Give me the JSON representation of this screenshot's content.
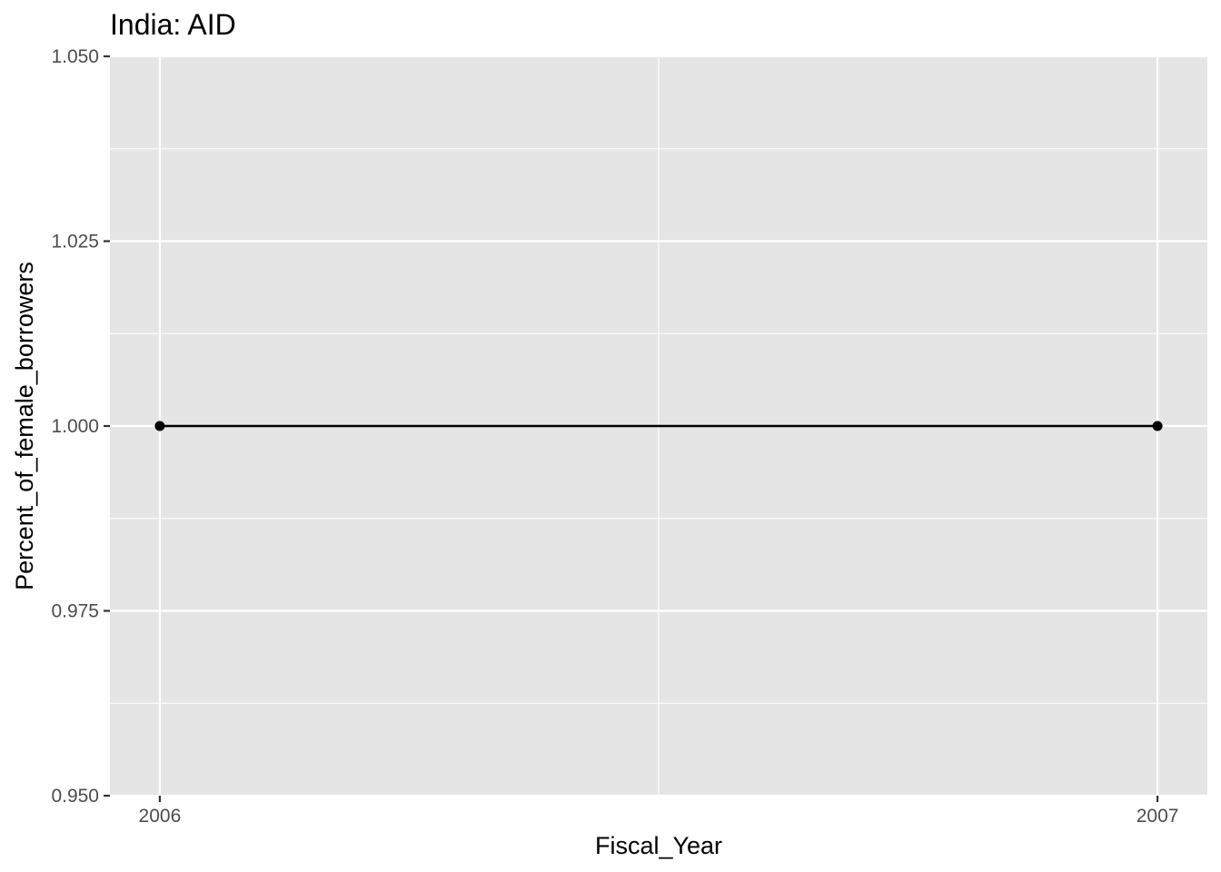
{
  "chart_data": {
    "type": "line",
    "title": "India:  AID",
    "xlabel": "Fiscal_Year",
    "ylabel": "Percent_of_female_borrowers",
    "x": [
      2006,
      2007
    ],
    "x_tick_labels": [
      "2006",
      "2007"
    ],
    "series": [
      {
        "values": [
          1.0,
          1.0
        ]
      }
    ],
    "xlim": [
      2005.95,
      2007.05
    ],
    "ylim": [
      0.95,
      1.05
    ],
    "y_ticks": [
      0.95,
      0.975,
      1.0,
      1.025,
      1.05
    ],
    "y_tick_labels": [
      "0.950",
      "0.975",
      "1.000",
      "1.025",
      "1.050"
    ],
    "grid": true,
    "legend": "none",
    "colors": {
      "panel_background": "#e5e5e5",
      "grid": "#ffffff",
      "series": "#000000",
      "tick_text": "#4d4d4d",
      "axis_ticks": "#333333"
    }
  }
}
